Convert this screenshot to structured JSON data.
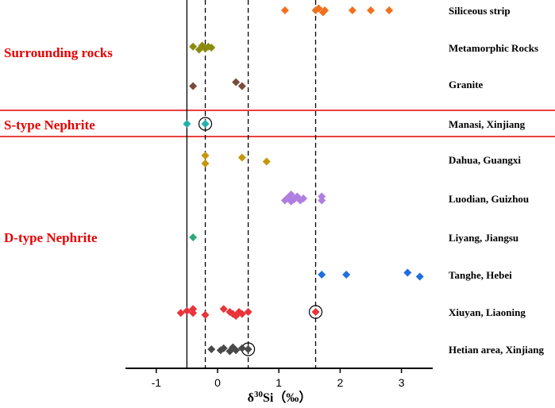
{
  "chart_data": {
    "type": "scatter",
    "title": "",
    "xlabel": "δ30Si (‰)",
    "xlabel_parts": {
      "base": "δ",
      "sup": "30",
      "tail": "Si（‰）"
    },
    "xlim": [
      -1.55,
      3.55
    ],
    "xticks": [
      -1,
      0,
      1,
      2,
      3
    ],
    "xtick_labels": [
      "-1",
      "0",
      "1",
      "2",
      "3"
    ],
    "reference_lines": [
      {
        "x": -0.5,
        "style": "solid"
      },
      {
        "x": -0.2,
        "style": "dashed"
      },
      {
        "x": 0.5,
        "style": "dashed"
      },
      {
        "x": 1.6,
        "style": "dashed"
      }
    ],
    "groups": [
      {
        "label": "Surrounding rocks",
        "rows": [
          "Siliceous strip",
          "Metamorphic Rocks",
          "Granite"
        ]
      },
      {
        "label": "S-type Nephrite",
        "rows": [
          "Manasi, Xinjiang"
        ]
      },
      {
        "label": "D-type Nephrite",
        "rows": [
          "Dahua, Guangxi",
          "Luodian, Guizhou",
          "Liyang, Jiangsu",
          "Tanghe, Hebei",
          "Xiuyan, Liaoning",
          "Hetian area, Xinjiang"
        ]
      }
    ],
    "series": [
      {
        "name": "Siliceous strip",
        "color": "#f07020",
        "points": [
          [
            1.1,
            0
          ],
          [
            1.6,
            0
          ],
          [
            1.65,
            -0.1
          ],
          [
            1.72,
            0.1
          ],
          [
            1.75,
            0
          ],
          [
            2.2,
            0
          ],
          [
            2.5,
            0
          ],
          [
            2.8,
            0
          ]
        ],
        "circled": []
      },
      {
        "name": "Metamorphic Rocks",
        "color": "#8b8b10",
        "points": [
          [
            -0.4,
            -0.05
          ],
          [
            -0.3,
            0.1
          ],
          [
            -0.25,
            -0.1
          ],
          [
            -0.2,
            0.05
          ],
          [
            -0.15,
            -0.05
          ],
          [
            -0.1,
            0
          ]
        ],
        "circled": []
      },
      {
        "name": "Granite",
        "color": "#7a4a3a",
        "points": [
          [
            -0.4,
            0.1
          ],
          [
            0.3,
            -0.1
          ],
          [
            0.4,
            0.1
          ]
        ],
        "circled": []
      },
      {
        "name": "Manasi, Xinjiang",
        "color": "#20b0b0",
        "points": [
          [
            -0.5,
            0
          ],
          [
            -0.2,
            0
          ]
        ],
        "circled": [
          -0.2
        ]
      },
      {
        "name": "Dahua, Guangxi",
        "color": "#c8960c",
        "points": [
          [
            -0.2,
            0.2
          ],
          [
            -0.2,
            -0.2
          ],
          [
            0.4,
            -0.1
          ],
          [
            0.8,
            0.1
          ]
        ],
        "circled": []
      },
      {
        "name": "Luodian, Guizhou",
        "color": "#b07ee0",
        "points": [
          [
            1.1,
            0.1
          ],
          [
            1.15,
            -0.05
          ],
          [
            1.2,
            0.15
          ],
          [
            1.2,
            -0.2
          ],
          [
            1.25,
            0.05
          ],
          [
            1.3,
            -0.1
          ],
          [
            1.35,
            0.1
          ],
          [
            1.4,
            0
          ],
          [
            1.7,
            0.1
          ],
          [
            1.7,
            -0.1
          ]
        ],
        "circled": []
      },
      {
        "name": "Liyang, Jiangsu",
        "color": "#2ea87a",
        "points": [
          [
            -0.4,
            0
          ]
        ],
        "circled": []
      },
      {
        "name": "Tanghe, Hebei",
        "color": "#1f6fe0",
        "points": [
          [
            1.7,
            0
          ],
          [
            2.1,
            0
          ],
          [
            3.1,
            -0.1
          ],
          [
            3.3,
            0.1
          ]
        ],
        "circled": []
      },
      {
        "name": "Xiuyan, Liaoning",
        "color": "#e8343a",
        "points": [
          [
            -0.6,
            0.05
          ],
          [
            -0.5,
            -0.05
          ],
          [
            -0.4,
            0.05
          ],
          [
            -0.4,
            -0.15
          ],
          [
            -0.2,
            0.15
          ],
          [
            0.1,
            -0.15
          ],
          [
            0.2,
            0
          ],
          [
            0.25,
            0.1
          ],
          [
            0.3,
            0.2
          ],
          [
            0.35,
            0
          ],
          [
            0.4,
            0.1
          ],
          [
            0.5,
            0
          ],
          [
            1.6,
            0
          ]
        ],
        "circled": [
          1.6
        ]
      },
      {
        "name": "Hetian area, Xinjiang",
        "color": "#4a4a4a",
        "points": [
          [
            -0.1,
            0
          ],
          [
            0.05,
            0.05
          ],
          [
            0.1,
            -0.05
          ],
          [
            0.2,
            0.1
          ],
          [
            0.25,
            -0.1
          ],
          [
            0.3,
            0.05
          ],
          [
            0.4,
            -0.05
          ],
          [
            0.5,
            0
          ]
        ],
        "circled": [
          0.5
        ]
      }
    ]
  }
}
